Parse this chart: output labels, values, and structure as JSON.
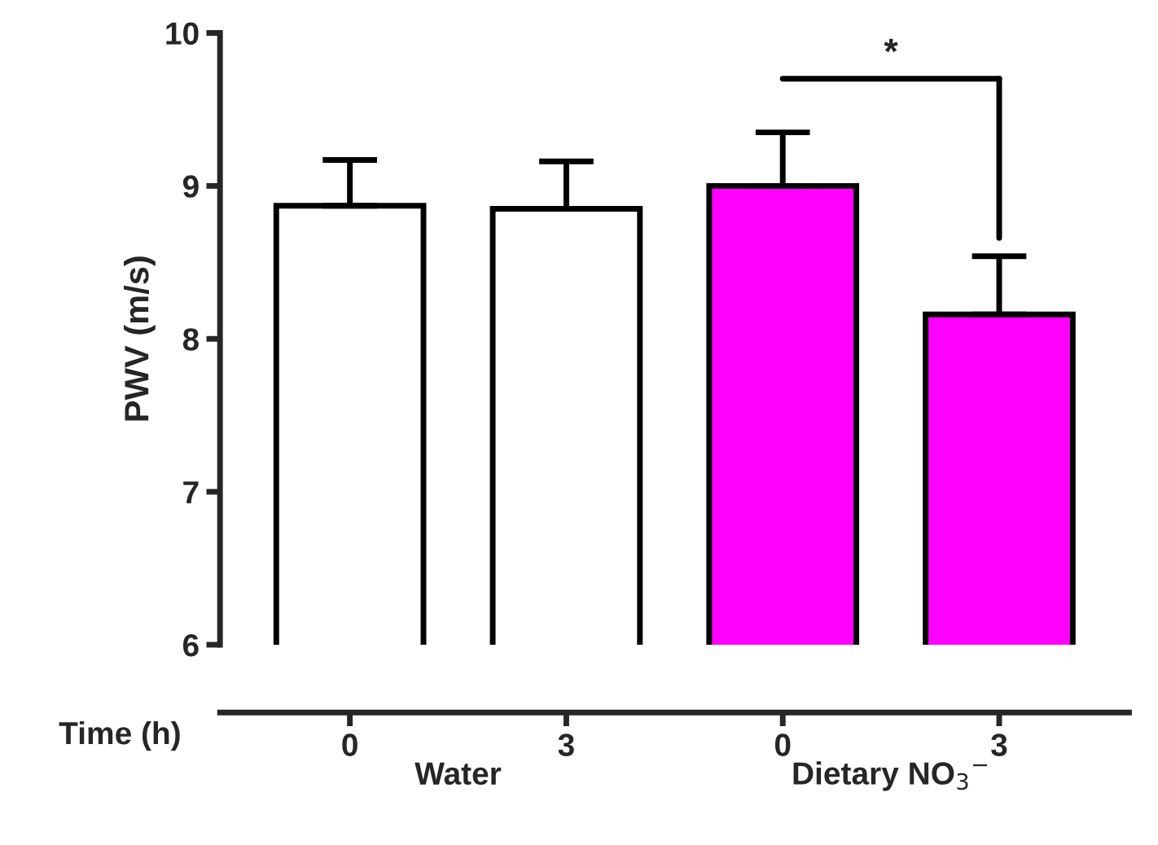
{
  "chart_data": {
    "type": "bar",
    "categories": [
      "0",
      "3",
      "0",
      "3"
    ],
    "values": [
      8.87,
      8.85,
      9.0,
      8.16
    ],
    "errors": [
      [
        8.87,
        9.17
      ],
      [
        8.85,
        9.16
      ],
      [
        9.0,
        9.35
      ],
      [
        8.16,
        8.54
      ]
    ],
    "colors": [
      "#ffffff",
      "#ffffff",
      "#ff00ff",
      "#ff00ff"
    ],
    "ylabel": "PWV (m/s)",
    "xlabel": "Time (h)",
    "ylim": [
      6,
      10
    ],
    "yticks": [
      6,
      7,
      8,
      9,
      10
    ],
    "grid": false,
    "legend": false,
    "annotations": [
      "Water",
      "Dietary NO$_{3}$$^{−}$",
      "*"
    ]
  }
}
